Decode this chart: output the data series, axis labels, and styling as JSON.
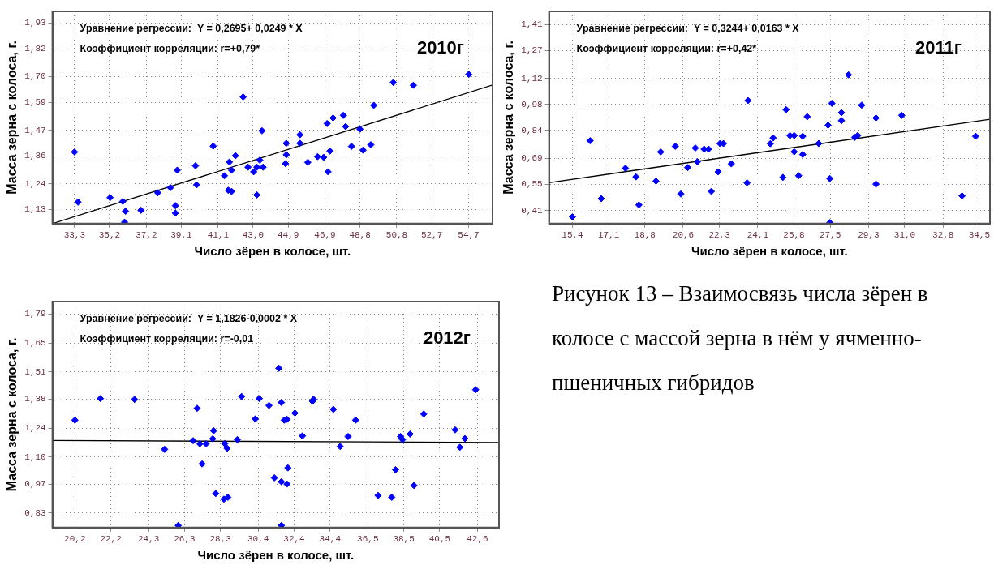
{
  "chart_data": [
    {
      "type": "scatter",
      "xlabel": "Число зёрен в колосе, шт.",
      "ylabel": "Масса зерна с колоса, г.",
      "annotations": [
        "Уравнение регрессии:  Y = 0,2695+ 0,0249 * X",
        "Коэффициент корреляции: r=+0,79*",
        "2010г"
      ],
      "xlim": [
        32.1,
        56.0
      ],
      "ylim": [
        1.07,
        1.98
      ],
      "xticks": [
        {
          "value": 33.3,
          "label": "33,3"
        },
        {
          "value": 35.2,
          "label": "35,2"
        },
        {
          "value": 37.2,
          "label": "37,2"
        },
        {
          "value": 39.1,
          "label": "39,1"
        },
        {
          "value": 41.1,
          "label": "41,1"
        },
        {
          "value": 43.0,
          "label": "43,0"
        },
        {
          "value": 44.9,
          "label": "44,9"
        },
        {
          "value": 46.9,
          "label": "46,9"
        },
        {
          "value": 48.8,
          "label": "48,8"
        },
        {
          "value": 50.8,
          "label": "50,8"
        },
        {
          "value": 52.7,
          "label": "52,7"
        },
        {
          "value": 54.7,
          "label": "54,7"
        }
      ],
      "yticks": [
        {
          "value": 1.13,
          "label": "1,13"
        },
        {
          "value": 1.24,
          "label": "1,24"
        },
        {
          "value": 1.36,
          "label": "1,36"
        },
        {
          "value": 1.47,
          "label": "1,47"
        },
        {
          "value": 1.59,
          "label": "1,59"
        },
        {
          "value": 1.7,
          "label": "1,70"
        },
        {
          "value": 1.82,
          "label": "1,82"
        },
        {
          "value": 1.93,
          "label": "1,93"
        }
      ],
      "grid": true,
      "series": [
        {
          "type": "scatter",
          "color": "#0000ff",
          "marker": "diamond",
          "x": [
            33.3,
            33.49,
            35.23,
            35.92,
            36.07,
            36.02,
            36.91,
            37.82,
            38.51,
            38.78,
            38.78,
            38.88,
            39.87,
            39.93,
            40.83,
            41.44,
            41.71,
            41.83,
            41.65,
            41.83,
            42.04,
            42.46,
            42.72,
            43.03,
            43.2,
            43.2,
            43.36,
            43.48,
            43.54,
            44.76,
            44.8,
            44.8,
            45.54,
            45.54,
            45.97,
            46.5,
            46.83,
            47.02,
            47.07,
            47.17,
            47.34,
            47.9,
            48.02,
            48.34,
            48.8,
            48.97,
            49.39,
            49.55,
            50.61,
            51.7,
            54.71
          ],
          "values": [
            1.377,
            1.162,
            1.181,
            1.165,
            1.123,
            1.076,
            1.127,
            1.202,
            1.224,
            1.147,
            1.115,
            1.299,
            1.318,
            1.236,
            1.402,
            1.275,
            1.334,
            1.299,
            1.213,
            1.208,
            1.361,
            1.613,
            1.312,
            1.292,
            1.312,
            1.193,
            1.342,
            1.468,
            1.312,
            1.327,
            1.365,
            1.414,
            1.451,
            1.414,
            1.333,
            1.357,
            1.354,
            1.499,
            1.292,
            1.381,
            1.523,
            1.534,
            1.486,
            1.401,
            1.475,
            1.385,
            1.408,
            1.577,
            1.675,
            1.663,
            1.71
          ]
        },
        {
          "type": "line",
          "color": "#000000",
          "marker": "none",
          "x": [
            32.1,
            56.0
          ],
          "values": [
            1.07,
            1.664
          ]
        }
      ]
    },
    {
      "type": "scatter",
      "xlabel": "Число зёрен в колосе, шт.",
      "ylabel": "Масса зерна с колоса, г.",
      "annotations": [
        "Уравнение регрессии:  Y = 0,3244+ 0,0163 * X",
        "Коэффициент корреляции: r=+0,42*",
        "2011г"
      ],
      "xlim": [
        14.3,
        35.0
      ],
      "ylim": [
        0.34,
        1.48
      ],
      "xticks": [
        {
          "value": 15.4,
          "label": "15,4"
        },
        {
          "value": 17.1,
          "label": "17,1"
        },
        {
          "value": 18.8,
          "label": "18,8"
        },
        {
          "value": 20.6,
          "label": "20,6"
        },
        {
          "value": 22.3,
          "label": "22,3"
        },
        {
          "value": 24.1,
          "label": "24,1"
        },
        {
          "value": 25.8,
          "label": "25,8"
        },
        {
          "value": 27.5,
          "label": "27,5"
        },
        {
          "value": 29.3,
          "label": "29,3"
        },
        {
          "value": 31.0,
          "label": "31,0"
        },
        {
          "value": 32.8,
          "label": "32,8"
        },
        {
          "value": 34.5,
          "label": "34,5"
        }
      ],
      "yticks": [
        {
          "value": 0.41,
          "label": "0,41"
        },
        {
          "value": 0.55,
          "label": "0,55"
        },
        {
          "value": 0.69,
          "label": "0,69"
        },
        {
          "value": 0.84,
          "label": "0,84"
        },
        {
          "value": 0.98,
          "label": "0,98"
        },
        {
          "value": 1.12,
          "label": "1,12"
        },
        {
          "value": 1.27,
          "label": "1,27"
        },
        {
          "value": 1.41,
          "label": "1,41"
        }
      ],
      "grid": true,
      "series": [
        {
          "type": "scatter",
          "color": "#0000ff",
          "marker": "diamond",
          "x": [
            15.4,
            16.23,
            16.75,
            17.89,
            18.38,
            18.52,
            19.32,
            19.54,
            20.23,
            20.49,
            20.81,
            21.17,
            21.27,
            21.58,
            21.79,
            21.92,
            22.24,
            22.33,
            22.49,
            22.86,
            23.6,
            23.64,
            24.69,
            24.82,
            25.28,
            25.43,
            25.61,
            25.81,
            25.81,
            26.02,
            26.21,
            26.21,
            26.42,
            26.96,
            27.4,
            27.48,
            27.48,
            27.58,
            28.03,
            28.03,
            28.36,
            28.65,
            28.79,
            28.98,
            29.65,
            29.65,
            30.86,
            33.69,
            34.33
          ],
          "values": [
            0.376,
            0.785,
            0.474,
            0.637,
            0.591,
            0.44,
            0.568,
            0.725,
            0.755,
            0.499,
            0.641,
            0.746,
            0.672,
            0.74,
            0.74,
            0.513,
            0.618,
            0.77,
            0.77,
            0.661,
            0.559,
            1.001,
            0.769,
            0.8,
            0.588,
            0.952,
            0.813,
            0.813,
            0.726,
            0.597,
            0.809,
            0.711,
            0.914,
            0.77,
            0.868,
            0.582,
            0.345,
            0.986,
            0.936,
            0.893,
            1.139,
            0.803,
            0.813,
            0.976,
            0.907,
            0.552,
            0.921,
            0.489,
            0.809
          ]
        },
        {
          "type": "line",
          "color": "#000000",
          "marker": "none",
          "x": [
            14.3,
            35.0
          ],
          "values": [
            0.56,
            0.9
          ]
        }
      ]
    },
    {
      "type": "scatter",
      "xlabel": "Число зёрен в колосе, шт.",
      "ylabel": "Масса зерна с колоса, г.",
      "annotations": [
        "Уравнение регрессии:  Y = 1,1826-0,0002 * X",
        "Коэффициент корреляции: r=-0,01",
        "2012г"
      ],
      "xlim": [
        18.95,
        43.8
      ],
      "ylim": [
        0.76,
        1.85
      ],
      "xticks": [
        {
          "value": 20.2,
          "label": "20,2"
        },
        {
          "value": 22.2,
          "label": "22,2"
        },
        {
          "value": 24.3,
          "label": "24,3"
        },
        {
          "value": 26.3,
          "label": "26,3"
        },
        {
          "value": 28.3,
          "label": "28,3"
        },
        {
          "value": 30.4,
          "label": "30,4"
        },
        {
          "value": 32.4,
          "label": "32,4"
        },
        {
          "value": 34.4,
          "label": "34,4"
        },
        {
          "value": 36.5,
          "label": "36,5"
        },
        {
          "value": 38.5,
          "label": "38,5"
        },
        {
          "value": 40.5,
          "label": "40,5"
        },
        {
          "value": 42.6,
          "label": "42,6"
        }
      ],
      "yticks": [
        {
          "value": 0.83,
          "label": "0,83"
        },
        {
          "value": 0.97,
          "label": "0,97"
        },
        {
          "value": 1.1,
          "label": "1,10"
        },
        {
          "value": 1.24,
          "label": "1,24"
        },
        {
          "value": 1.38,
          "label": "1,38"
        },
        {
          "value": 1.51,
          "label": "1,51"
        },
        {
          "value": 1.65,
          "label": "1,65"
        },
        {
          "value": 1.79,
          "label": "1,79"
        }
      ],
      "grid": true,
      "series": [
        {
          "type": "scatter",
          "color": "#0000ff",
          "marker": "diamond",
          "x": [
            20.2,
            21.62,
            23.52,
            25.19,
            25.95,
            26.78,
            27.0,
            27.15,
            27.28,
            27.5,
            27.87,
            27.92,
            28.04,
            28.49,
            28.54,
            28.67,
            28.71,
            29.24,
            29.48,
            30.24,
            30.46,
            31.0,
            31.3,
            31.55,
            31.69,
            31.69,
            31.69,
            31.85,
            32.0,
            32.0,
            32.05,
            32.44,
            32.86,
            33.42,
            33.48,
            34.58,
            34.96,
            35.4,
            35.82,
            37.07,
            37.83,
            38.04,
            38.32,
            38.43,
            38.85,
            39.07,
            39.61,
            41.36,
            41.62,
            41.9,
            42.5
          ],
          "values": [
            1.278,
            1.382,
            1.378,
            1.137,
            0.77,
            1.179,
            1.335,
            1.164,
            1.067,
            1.164,
            1.188,
            1.227,
            0.924,
            0.897,
            1.165,
            1.142,
            0.906,
            1.184,
            1.392,
            1.284,
            1.382,
            1.349,
            1.0,
            1.528,
            1.363,
            0.981,
            0.77,
            1.278,
            1.282,
            0.97,
            1.048,
            1.312,
            1.202,
            1.369,
            1.378,
            1.33,
            1.151,
            1.199,
            1.278,
            0.915,
            0.906,
            1.039,
            1.199,
            1.184,
            1.211,
            0.963,
            1.308,
            1.231,
            1.147,
            1.189,
            1.425
          ]
        },
        {
          "type": "line",
          "color": "#000000",
          "marker": "none",
          "x": [
            18.95,
            43.8
          ],
          "values": [
            1.18,
            1.17
          ]
        }
      ]
    },
    {
      "type": "other",
      "annotations": [
        "Рисунок 13 – Взаимосвязь числа зёрен в колосе с массой зерна в нём у ячменно-пшеничных гибридов"
      ]
    }
  ]
}
